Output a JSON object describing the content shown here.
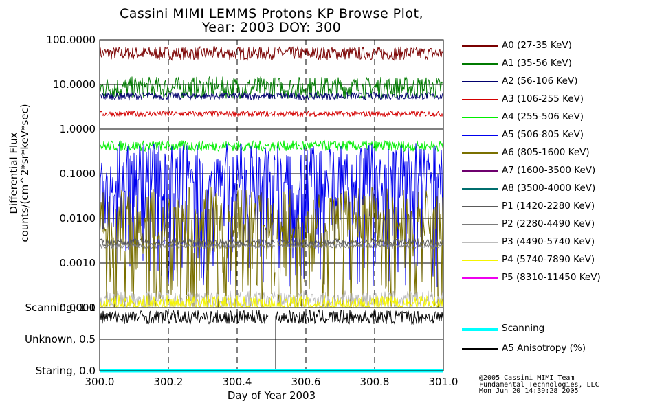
{
  "title_line1": "Cassini MIMI LEMMS Protons KP Browse Plot,",
  "title_line2": "Year: 2003 DOY: 300",
  "credits": [
    "@2005 Cassini MIMI Team",
    "Fundamental Technologies, LLC",
    "Mon Jun 20 14:39:28 2005"
  ],
  "colors": {
    "A0": "#7a0000",
    "A1": "#007a00",
    "A2": "#00006e",
    "A3": "#d40000",
    "A4": "#00ee00",
    "A5": "#0000ee",
    "A6": "#7a7000",
    "A7": "#6e006e",
    "A8": "#006e6e",
    "P1": "#5a5a5a",
    "P2": "#7a7a7a",
    "P3": "#bcbcbc",
    "P4": "#f5f500",
    "P5": "#ee00ee",
    "scan": "#00ffff",
    "aniso": "#000000"
  },
  "chart_data": [
    {
      "type": "line",
      "title": "Cassini MIMI LEMMS Protons KP Browse Plot, Year: 2003 DOY: 300",
      "ylabel_line1": "Differential Flux",
      "ylabel_line2": "counts/(cm^2*sr*keV*sec)",
      "yscale": "log",
      "ylim": [
        0.0001,
        100
      ],
      "yticks": [
        100,
        10,
        1,
        0.1,
        0.01,
        0.001,
        0.0001
      ],
      "ytick_labels": [
        "100.0000",
        "10.0000",
        "1.0000",
        "0.1000",
        "0.0100",
        "0.0010",
        "0.0001"
      ],
      "xlim": [
        300.0,
        301.0
      ],
      "data_gap": [
        300.51,
        300.512
      ],
      "series": [
        {
          "key": "A0",
          "name": "A0 (27-35 KeV)",
          "level": 50,
          "spread": 0.15
        },
        {
          "key": "A1",
          "name": "A1 (35-56 KeV)",
          "level": 8.5,
          "spread": 0.25
        },
        {
          "key": "A2",
          "name": "A2 (56-106 KeV)",
          "level": 5.5,
          "spread": 0.08
        },
        {
          "key": "A3",
          "name": "A3 (106-255 KeV)",
          "level": 2.2,
          "spread": 0.06
        },
        {
          "key": "A4",
          "name": "A4 (255-506 KeV)",
          "level": 0.42,
          "spread": 0.12
        },
        {
          "key": "A5",
          "name": "A5 (506-805 KeV)",
          "level": 0.05,
          "spread": 1.0
        },
        {
          "key": "A6",
          "name": "A6 (805-1600 KeV)",
          "level": 0.005,
          "spread": 1.0
        },
        {
          "key": "A7",
          "name": "A7 (1600-3500 KeV)",
          "level": null,
          "spread": 0
        },
        {
          "key": "A8",
          "name": "A8 (3500-4000 KeV)",
          "level": null,
          "spread": 0
        },
        {
          "key": "P1",
          "name": "P1 (1420-2280 KeV)",
          "level": 0.0029,
          "spread": 0.08
        },
        {
          "key": "P2",
          "name": "P2 (2280-4490 KeV)",
          "level": 0.0024,
          "spread": 0.05
        },
        {
          "key": "P3",
          "name": "P3 (4490-5740 KeV)",
          "level": 0.00015,
          "spread": 0.2
        },
        {
          "key": "P4",
          "name": "P4 (5740-7890 KeV)",
          "level": 0.00012,
          "spread": 0.2
        },
        {
          "key": "P5",
          "name": "P5 (8310-11450 KeV)",
          "level": null,
          "spread": 0
        }
      ]
    },
    {
      "type": "line",
      "ylim": [
        0.0,
        1.0
      ],
      "ytick_labels": [
        "Scanning, 1.0",
        "Unknown, 0.5",
        "Staring, 0.0"
      ],
      "yticks": [
        1.0,
        0.5,
        0.0
      ],
      "xlim": [
        300.0,
        301.0
      ],
      "xticks": [
        300.0,
        300.2,
        300.4,
        300.6,
        300.8,
        301.0
      ],
      "xtick_labels": [
        "300.0",
        "300.2",
        "300.4",
        "300.6",
        "300.8",
        "301.0"
      ],
      "xlabel": "Day of Year 2003",
      "series": [
        {
          "key": "scan",
          "name": "Scanning",
          "value": 0.0
        },
        {
          "key": "aniso",
          "name": "A5 Anisotropy (%)",
          "level": 0.85
        }
      ]
    }
  ]
}
